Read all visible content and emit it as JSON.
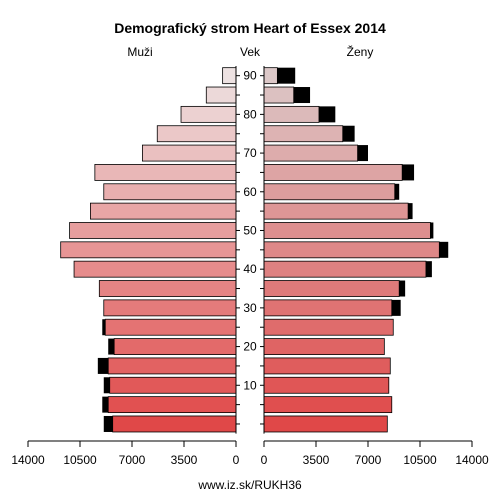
{
  "chart_data": {
    "type": "bar",
    "title": "Demografický strom Heart of Essex 2014",
    "left_label": "Muži",
    "center_label": "Vek",
    "right_label": "Ženy",
    "footer": "www.iz.sk/RUKH36",
    "age_ticks": [
      "10",
      "20",
      "30",
      "40",
      "50",
      "60",
      "70",
      "80",
      "90"
    ],
    "x_tick_labels_left": [
      "14000",
      "10500",
      "7000",
      "3500",
      "0"
    ],
    "x_tick_labels_right": [
      "0",
      "3500",
      "7000",
      "10500",
      "14000"
    ],
    "xlim": [
      0,
      14000
    ],
    "age_groups": [
      "0",
      "5",
      "10",
      "15",
      "20",
      "25",
      "30",
      "35",
      "40",
      "45",
      "50",
      "55",
      "60",
      "65",
      "70",
      "75",
      "80",
      "85",
      "90"
    ],
    "series": [
      {
        "name": "Muži",
        "values": [
          8300,
          8600,
          8500,
          8600,
          8200,
          8800,
          8900,
          9200,
          10900,
          11800,
          11200,
          9800,
          8900,
          9500,
          6300,
          5300,
          3700,
          2000,
          900
        ]
      },
      {
        "name": "Muži excess",
        "values": [
          600,
          400,
          400,
          700,
          400,
          200,
          0,
          0,
          0,
          0,
          0,
          0,
          0,
          0,
          0,
          0,
          0,
          0,
          0
        ]
      },
      {
        "name": "Ženy",
        "values": [
          8300,
          8600,
          8400,
          8500,
          8100,
          8700,
          8600,
          9100,
          10900,
          11800,
          11200,
          9700,
          8800,
          9300,
          6300,
          5300,
          3700,
          2000,
          900
        ]
      },
      {
        "name": "Ženy excess",
        "values": [
          0,
          0,
          0,
          0,
          0,
          0,
          600,
          400,
          400,
          600,
          200,
          300,
          300,
          800,
          700,
          800,
          1100,
          1100,
          1200
        ]
      }
    ],
    "colors": {
      "male_young": "#e04848",
      "male_old": "#ede2e2",
      "female_young": "#e04848",
      "female_old": "#dcc8c8",
      "excess": "#000000",
      "stroke": "#000000"
    }
  }
}
